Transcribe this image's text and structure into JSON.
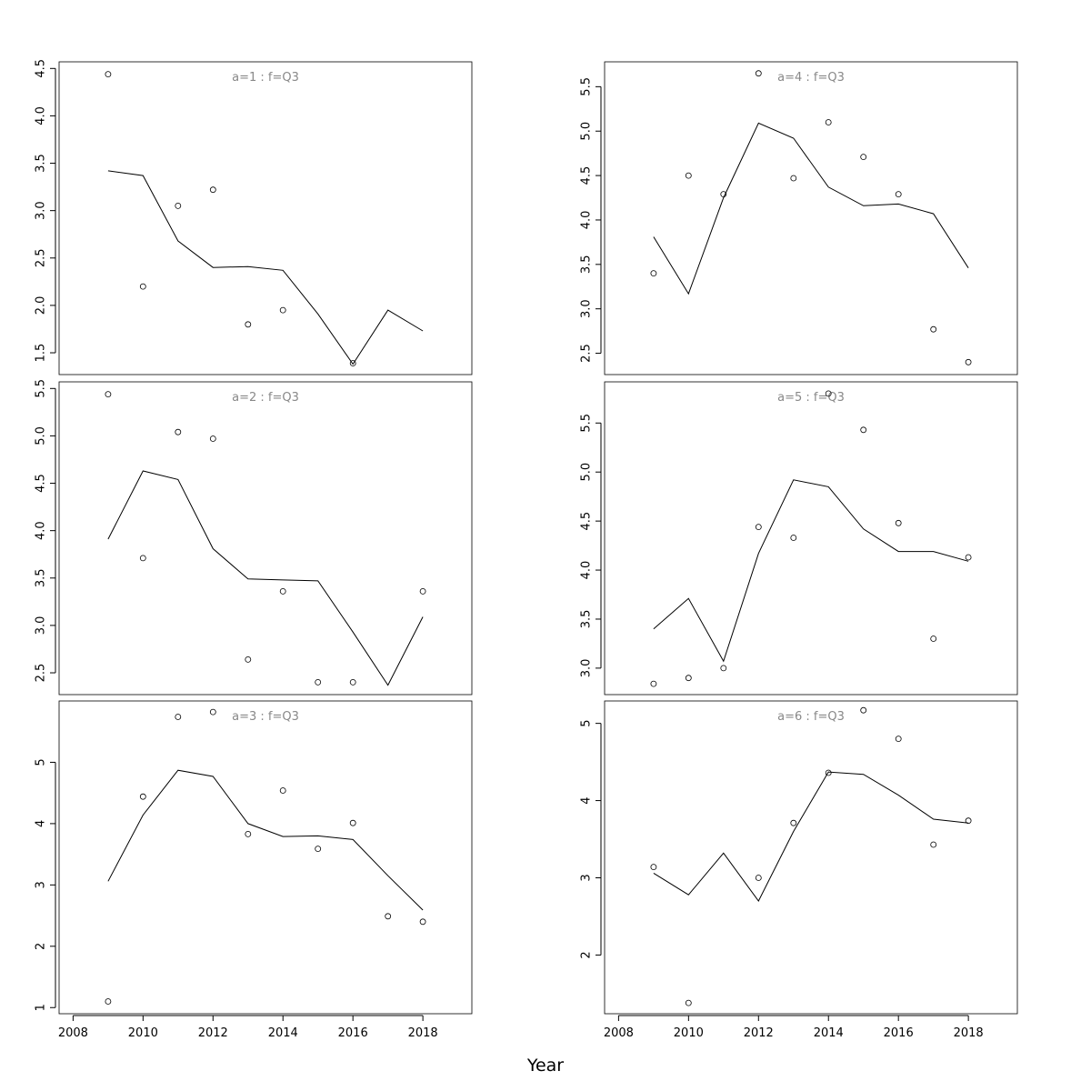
{
  "figure": {
    "xlabel": "Year"
  },
  "chart_data": [
    {
      "type": "line",
      "title": "a=1 : f=Q3",
      "x": [
        2009,
        2010,
        2011,
        2012,
        2013,
        2014,
        2015,
        2016,
        2017,
        2018
      ],
      "series": [
        {
          "kind": "points",
          "x": [
            2009,
            2010,
            2011,
            2012,
            2013,
            2014,
            2016
          ],
          "values": [
            4.44,
            2.2,
            3.05,
            3.22,
            1.8,
            1.95,
            1.39
          ]
        },
        {
          "kind": "line",
          "values": [
            3.42,
            3.37,
            2.68,
            2.4,
            2.41,
            2.37,
            1.91,
            1.38,
            1.95,
            1.73
          ]
        }
      ],
      "xlim": [
        2007.6,
        2019.4
      ],
      "ylim": [
        1.27,
        4.57
      ],
      "yticks": [
        1.5,
        2.0,
        2.5,
        3.0,
        3.5,
        4.0,
        4.5
      ],
      "ytick_labels": [
        "1.5",
        "2.0",
        "2.5",
        "3.0",
        "3.5",
        "4.0",
        "4.5"
      ],
      "show_x_axis": false
    },
    {
      "type": "line",
      "title": "a=2 : f=Q3",
      "x": [
        2009,
        2010,
        2011,
        2012,
        2013,
        2014,
        2015,
        2016,
        2017,
        2018
      ],
      "series": [
        {
          "kind": "points",
          "x": [
            2009,
            2010,
            2011,
            2012,
            2013,
            2014,
            2015,
            2016,
            2018
          ],
          "values": [
            5.44,
            3.71,
            5.04,
            4.97,
            2.64,
            3.36,
            2.4,
            2.4,
            3.36
          ]
        },
        {
          "kind": "line",
          "values": [
            3.91,
            4.63,
            4.54,
            3.81,
            3.49,
            3.48,
            3.47,
            2.93,
            2.37,
            3.09
          ]
        }
      ],
      "xlim": [
        2007.6,
        2019.4
      ],
      "ylim": [
        2.27,
        5.57
      ],
      "yticks": [
        2.5,
        3.0,
        3.5,
        4.0,
        4.5,
        5.0,
        5.5
      ],
      "ytick_labels": [
        "2.5",
        "3.0",
        "3.5",
        "4.0",
        "4.5",
        "5.0",
        "5.5"
      ],
      "show_x_axis": false
    },
    {
      "type": "line",
      "title": "a=3 : f=Q3",
      "x": [
        2009,
        2010,
        2011,
        2012,
        2013,
        2014,
        2015,
        2016,
        2017,
        2018
      ],
      "series": [
        {
          "kind": "points",
          "x": [
            2009,
            2010,
            2011,
            2012,
            2013,
            2014,
            2015,
            2016,
            2017,
            2018
          ],
          "values": [
            1.1,
            4.44,
            5.74,
            5.82,
            3.83,
            4.54,
            3.59,
            4.01,
            2.49,
            2.4
          ]
        },
        {
          "kind": "line",
          "values": [
            3.06,
            4.14,
            4.87,
            4.77,
            4.0,
            3.79,
            3.8,
            3.74,
            3.15,
            2.59
          ]
        }
      ],
      "xlim": [
        2007.6,
        2019.4
      ],
      "ylim": [
        0.9,
        6.0
      ],
      "yticks": [
        1,
        2,
        3,
        4,
        5
      ],
      "ytick_labels": [
        "1",
        "2",
        "3",
        "4",
        "5"
      ],
      "show_x_axis": true,
      "xticks": [
        2008,
        2010,
        2012,
        2014,
        2016,
        2018
      ],
      "xtick_labels": [
        "2008",
        "2010",
        "2012",
        "2014",
        "2016",
        "2018"
      ]
    },
    {
      "type": "line",
      "title": "a=4 : f=Q3",
      "x": [
        2009,
        2010,
        2011,
        2012,
        2013,
        2014,
        2015,
        2016,
        2017,
        2018
      ],
      "series": [
        {
          "kind": "points",
          "x": [
            2009,
            2010,
            2011,
            2012,
            2013,
            2014,
            2015,
            2016,
            2017,
            2018
          ],
          "values": [
            3.4,
            4.5,
            4.29,
            5.65,
            4.47,
            5.1,
            4.71,
            4.29,
            2.77,
            2.4
          ]
        },
        {
          "kind": "line",
          "values": [
            3.81,
            3.17,
            4.25,
            5.09,
            4.92,
            4.37,
            4.16,
            4.18,
            4.07,
            3.46
          ]
        }
      ],
      "xlim": [
        2007.6,
        2019.4
      ],
      "ylim": [
        2.26,
        5.78
      ],
      "yticks": [
        2.5,
        3.0,
        3.5,
        4.0,
        4.5,
        5.0,
        5.5
      ],
      "ytick_labels": [
        "2.5",
        "3.0",
        "3.5",
        "4.0",
        "4.5",
        "5.0",
        "5.5"
      ],
      "show_x_axis": false
    },
    {
      "type": "line",
      "title": "a=5 : f=Q3",
      "x": [
        2009,
        2010,
        2011,
        2012,
        2013,
        2014,
        2015,
        2016,
        2017,
        2018
      ],
      "series": [
        {
          "kind": "points",
          "x": [
            2009,
            2010,
            2011,
            2012,
            2013,
            2014,
            2015,
            2016,
            2017,
            2018
          ],
          "values": [
            2.84,
            2.9,
            3.0,
            4.44,
            4.33,
            5.8,
            5.43,
            4.48,
            3.3,
            4.13
          ]
        },
        {
          "kind": "line",
          "values": [
            3.4,
            3.71,
            3.07,
            4.17,
            4.92,
            4.85,
            4.42,
            4.19,
            4.19,
            4.09
          ]
        }
      ],
      "xlim": [
        2007.6,
        2019.4
      ],
      "ylim": [
        2.73,
        5.92
      ],
      "yticks": [
        3.0,
        3.5,
        4.0,
        4.5,
        5.0,
        5.5
      ],
      "ytick_labels": [
        "3.0",
        "3.5",
        "4.0",
        "4.5",
        "5.0",
        "5.5"
      ],
      "show_x_axis": false
    },
    {
      "type": "line",
      "title": "a=6 : f=Q3",
      "x": [
        2009,
        2010,
        2011,
        2012,
        2013,
        2014,
        2015,
        2016,
        2017,
        2018
      ],
      "series": [
        {
          "kind": "points",
          "x": [
            2009,
            2010,
            2012,
            2013,
            2014,
            2015,
            2016,
            2017,
            2018
          ],
          "values": [
            3.14,
            1.38,
            3.0,
            3.71,
            4.36,
            5.17,
            4.8,
            3.43,
            3.74
          ]
        },
        {
          "kind": "line",
          "values": [
            3.06,
            2.78,
            3.32,
            2.7,
            3.6,
            4.37,
            4.34,
            4.07,
            3.76,
            3.71
          ]
        }
      ],
      "xlim": [
        2007.6,
        2019.4
      ],
      "ylim": [
        1.24,
        5.29
      ],
      "yticks": [
        2,
        3,
        4,
        5
      ],
      "ytick_labels": [
        "2",
        "3",
        "4",
        "5"
      ],
      "show_x_axis": true,
      "xticks": [
        2008,
        2010,
        2012,
        2014,
        2016,
        2018
      ],
      "xtick_labels": [
        "2008",
        "2010",
        "2012",
        "2014",
        "2016",
        "2018"
      ]
    }
  ]
}
